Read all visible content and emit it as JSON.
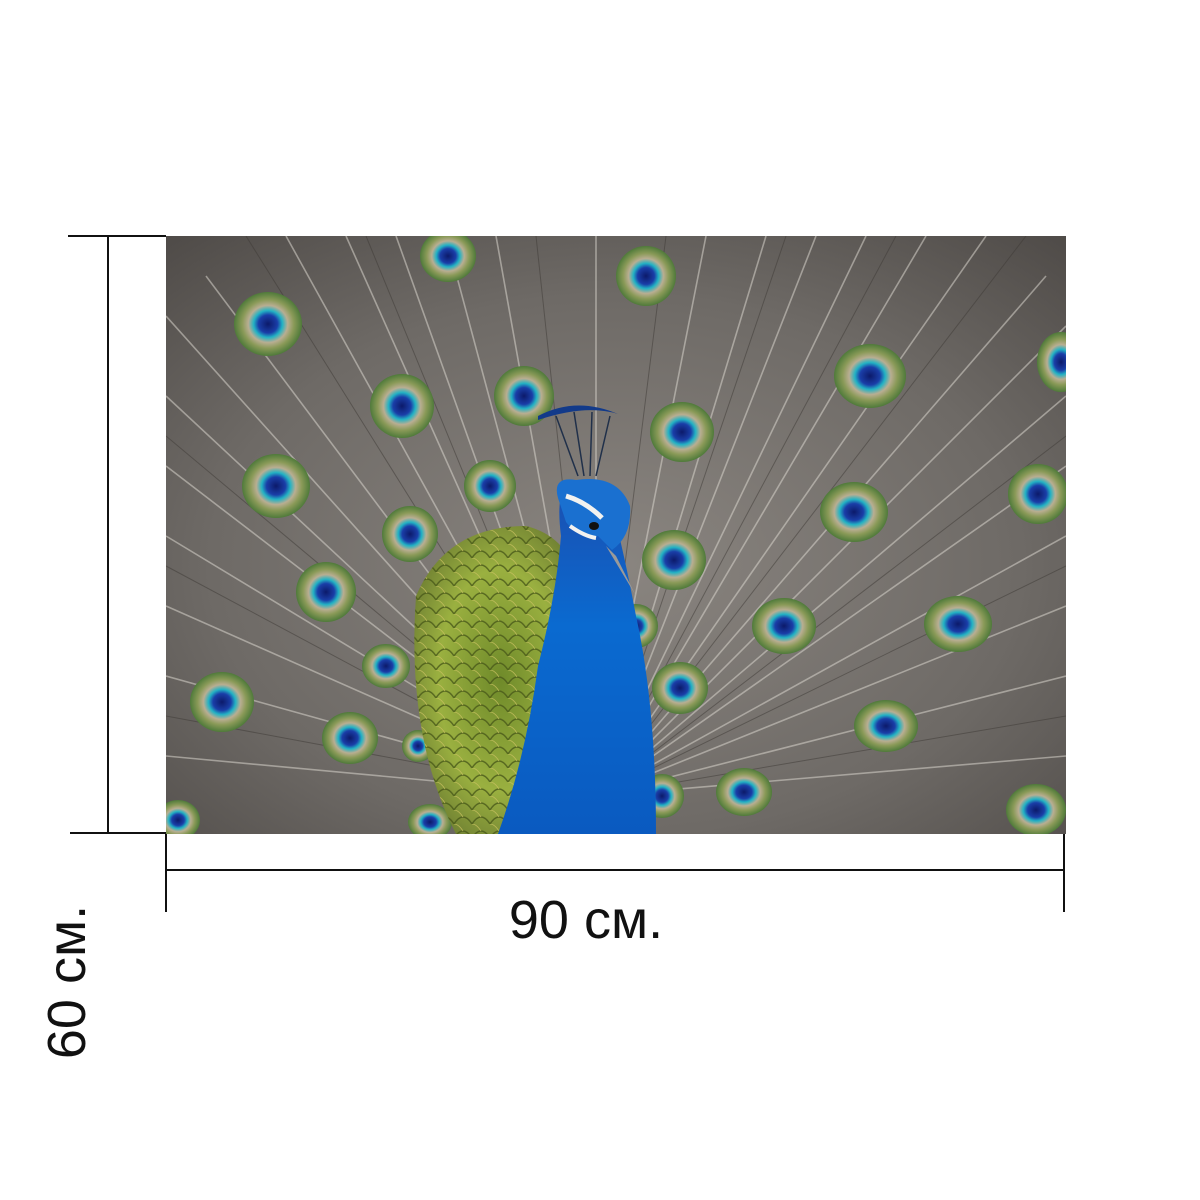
{
  "dimensions": {
    "width_label": "90 см.",
    "height_label": "60 см."
  },
  "image": {
    "subject": "peacock-icon",
    "colors": {
      "neck": "#0a5fc8",
      "head": "#1a78d8",
      "fan_background": "#6e6a66",
      "eye_outer": "#5f8a3a",
      "eye_ring": "#b8b09a",
      "eye_mid": "#1fa5b8",
      "eye_core": "#1a2a8a",
      "body_feathers": "#8fa83a",
      "line": "#111111"
    }
  }
}
